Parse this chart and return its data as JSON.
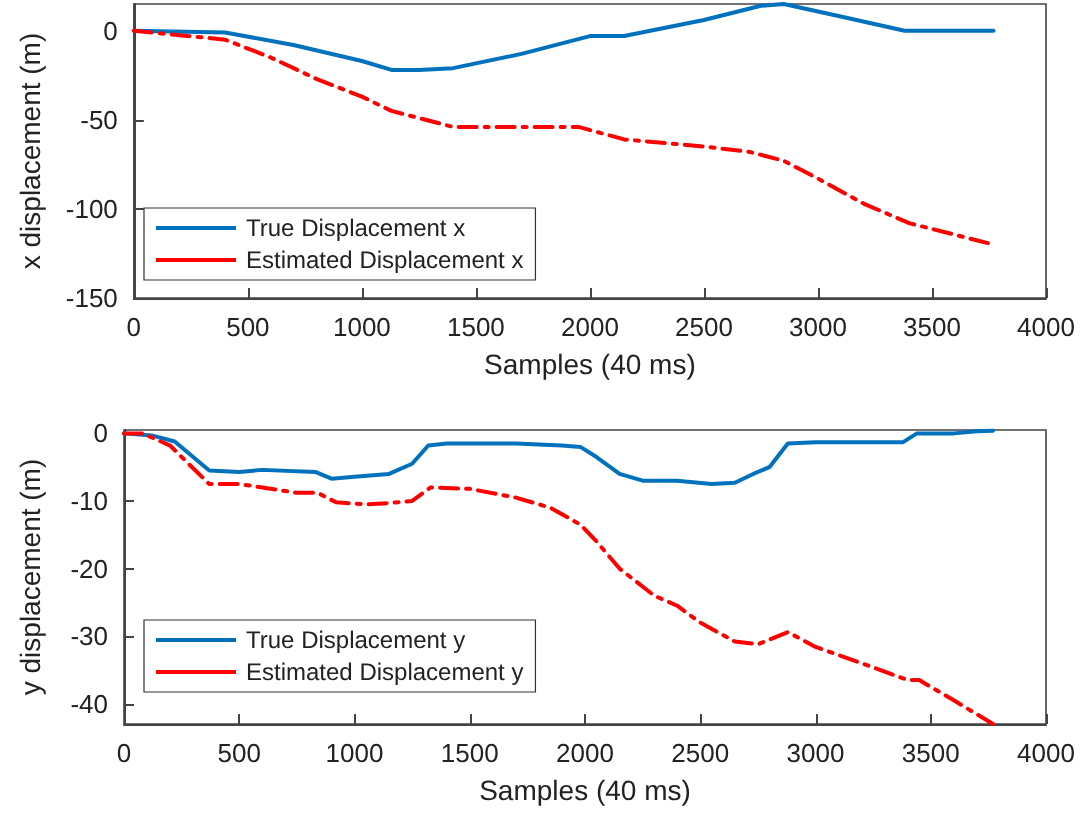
{
  "chart_data": [
    {
      "type": "line",
      "xlabel": "Samples (40 ms)",
      "ylabel": "x displacement (m)",
      "xlim": [
        0,
        4000
      ],
      "xticks": [
        0,
        500,
        1000,
        1500,
        2000,
        2500,
        3000,
        3500,
        4000
      ],
      "ylim": [
        -150,
        15
      ],
      "yticks": [
        -150,
        -100,
        -50,
        0
      ],
      "grid": false,
      "legend": "bottom left",
      "marker": "none",
      "series": [
        {
          "name": "True Displacement x",
          "color": "#0072bd",
          "line_style": "solid",
          "x": [
            0,
            400,
            700,
            1000,
            1130,
            1250,
            1400,
            1700,
            2000,
            2150,
            2500,
            2750,
            2850,
            3100,
            3380,
            3500,
            3770
          ],
          "values": [
            0,
            -1,
            -8,
            -17,
            -22,
            -22,
            -21,
            -13,
            -3,
            -3,
            6,
            14,
            15,
            8,
            0,
            0,
            0
          ]
        },
        {
          "name": "Estimated Displacement x",
          "color": "#ff0000",
          "line_style": "dashed",
          "x": [
            0,
            400,
            600,
            800,
            1000,
            1130,
            1400,
            1700,
            1950,
            2150,
            2500,
            2700,
            2850,
            3000,
            3200,
            3400,
            3770
          ],
          "values": [
            0,
            -5,
            -15,
            -27,
            -37,
            -45,
            -54,
            -54,
            -54,
            -61,
            -65,
            -68,
            -73,
            -83,
            -97,
            -108,
            -120
          ]
        }
      ]
    },
    {
      "type": "line",
      "xlabel": "Samples (40 ms)",
      "ylabel": "y displacement (m)",
      "xlim": [
        0,
        4000
      ],
      "xticks": [
        0,
        500,
        1000,
        1500,
        2000,
        2500,
        3000,
        3500,
        4000
      ],
      "ylim": [
        -43,
        0.5
      ],
      "yticks": [
        -40,
        -30,
        -20,
        -10,
        0
      ],
      "grid": false,
      "legend": "bottom left",
      "marker": "none",
      "series": [
        {
          "name": "True Displacement y",
          "color": "#0072bd",
          "line_style": "solid",
          "x": [
            0,
            120,
            220,
            300,
            370,
            500,
            600,
            830,
            900,
            1000,
            1150,
            1250,
            1320,
            1400,
            1700,
            1900,
            1980,
            2050,
            2150,
            2250,
            2400,
            2550,
            2650,
            2730,
            2800,
            2880,
            3000,
            3300,
            3380,
            3440,
            3600,
            3700,
            3770
          ],
          "values": [
            0,
            -0.3,
            -1.2,
            -3.5,
            -5.5,
            -5.7,
            -5.4,
            -5.7,
            -6.7,
            -6.4,
            -6,
            -4.5,
            -1.8,
            -1.5,
            -1.5,
            -1.8,
            -2,
            -3.5,
            -6,
            -7,
            -7,
            -7.5,
            -7.3,
            -6,
            -5,
            -1.5,
            -1.3,
            -1.3,
            -1.3,
            0,
            0,
            0.3,
            0.4
          ]
        },
        {
          "name": "Estimated Displacement y",
          "color": "#ff0000",
          "line_style": "dashed",
          "x": [
            0,
            80,
            200,
            280,
            370,
            500,
            600,
            750,
            840,
            920,
            1050,
            1150,
            1250,
            1330,
            1500,
            1700,
            1850,
            1980,
            2050,
            2150,
            2300,
            2400,
            2500,
            2650,
            2750,
            2880,
            3000,
            3200,
            3400,
            3450,
            3600,
            3770
          ],
          "values": [
            0,
            0,
            -1.8,
            -4.5,
            -7.5,
            -7.5,
            -8,
            -8.8,
            -8.8,
            -10.2,
            -10.5,
            -10.3,
            -10,
            -8,
            -8.2,
            -9.5,
            -11,
            -13.5,
            -16,
            -20,
            -24,
            -25.5,
            -28,
            -30.8,
            -31.2,
            -29.4,
            -31.6,
            -34,
            -36.5,
            -36.5,
            -39.5,
            -43
          ]
        }
      ]
    }
  ]
}
